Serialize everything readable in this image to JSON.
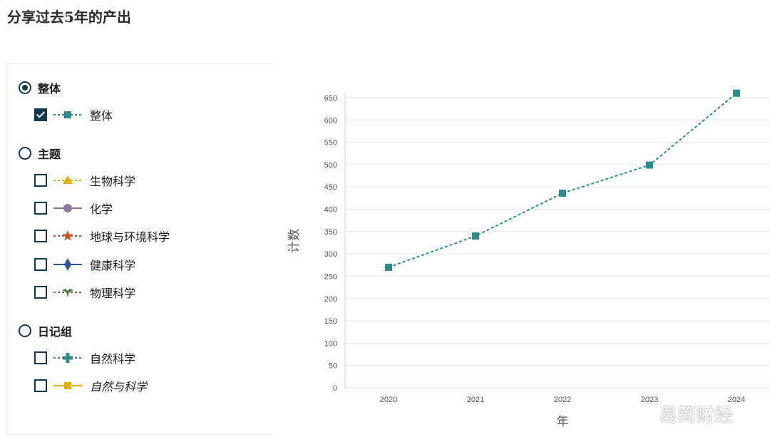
{
  "page": {
    "title": "分享过去5年的产出"
  },
  "selector": {
    "groups": [
      {
        "label": "整体",
        "selected": true,
        "items": [
          {
            "label": "整体",
            "checked": true,
            "color": "#2e8b8b",
            "marker": "square-icon",
            "line": "dashed",
            "italic": false
          }
        ]
      },
      {
        "label": "主题",
        "selected": false,
        "items": [
          {
            "label": "生物科学",
            "checked": false,
            "color": "#e0b000",
            "marker": "triangle-icon",
            "line": "dashed",
            "italic": false
          },
          {
            "label": "化学",
            "checked": false,
            "color": "#8b7a9b",
            "marker": "circle-icon",
            "line": "solid",
            "italic": false
          },
          {
            "label": "地球与环境科学",
            "checked": false,
            "color": "#c0562a",
            "marker": "star-icon",
            "line": "dashed",
            "italic": false
          },
          {
            "label": "健康科学",
            "checked": false,
            "color": "#2f5597",
            "marker": "diamond-icon",
            "line": "solid",
            "italic": false
          },
          {
            "label": "物理科学",
            "checked": false,
            "color": "#4e7d3a",
            "marker": "leaf-icon",
            "line": "dashed",
            "italic": false
          }
        ]
      },
      {
        "label": "日记组",
        "selected": false,
        "items": [
          {
            "label": "自然科学",
            "checked": false,
            "color": "#2e8b8b",
            "marker": "plus-icon",
            "line": "dashed",
            "italic": false
          },
          {
            "label": "自然与科学",
            "checked": false,
            "color": "#e0b000",
            "marker": "square-icon",
            "line": "solid",
            "italic": true
          }
        ]
      }
    ]
  },
  "chart_data": {
    "type": "line",
    "x": [
      "2020",
      "2021",
      "2022",
      "2023",
      "2024"
    ],
    "series": [
      {
        "name": "整体",
        "values": [
          270,
          340,
          436,
          499,
          660
        ],
        "color": "#2e8b8b",
        "marker": "square",
        "line": "dashed"
      }
    ],
    "xlabel": "年",
    "ylabel": "计数",
    "ylim": [
      0,
      650
    ],
    "yticks": [
      0,
      50,
      100,
      150,
      200,
      250,
      300,
      350,
      400,
      450,
      500,
      550,
      600,
      650
    ],
    "grid": true
  },
  "watermark": "易简财经"
}
